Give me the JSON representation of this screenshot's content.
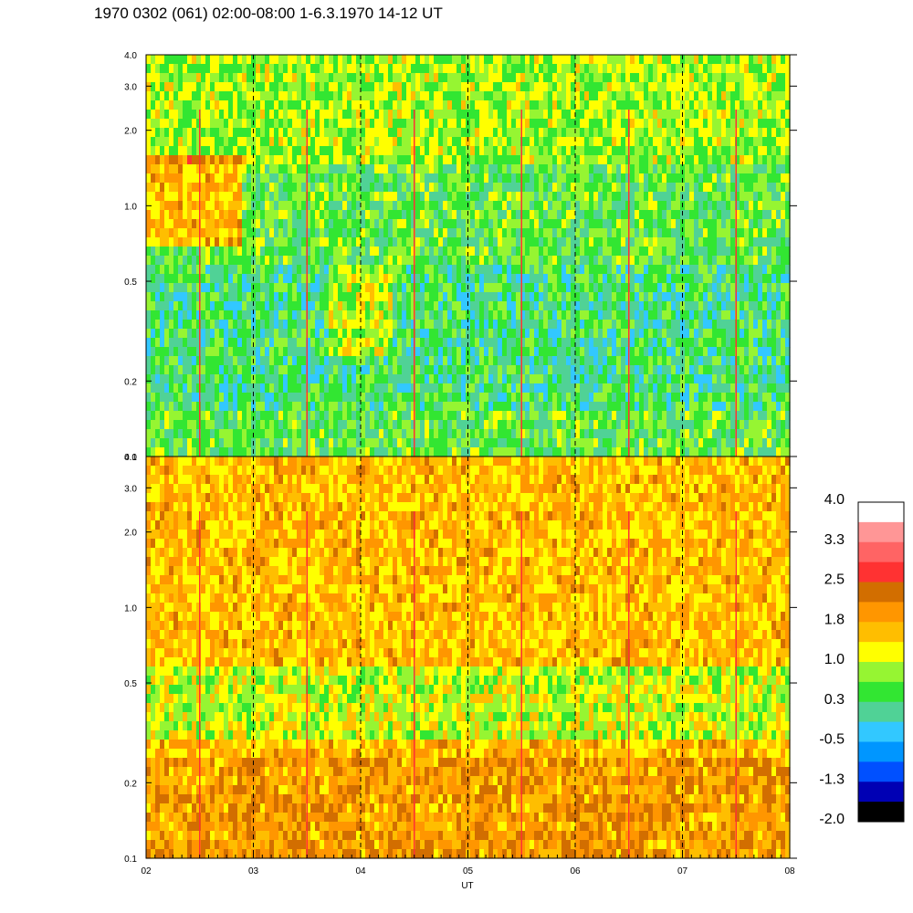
{
  "title": "1970 0302 (061) 02:00-08:00 1-6.3.1970  14-12 UT",
  "chart_data": {
    "type": "heatmap",
    "title": "1970 0302 (061) 02:00-08:00 1-6.3.1970  14-12 UT",
    "xlabel": "UT",
    "x_ticks": [
      "02",
      "03",
      "04",
      "05",
      "06",
      "07",
      "08"
    ],
    "xlim": [
      2,
      8
    ],
    "dashed_gridlines_x": [
      3,
      4,
      5,
      6,
      7
    ],
    "grid": false,
    "panels": [
      {
        "name": "upper",
        "y_scale": "log",
        "ylim": [
          0.1,
          4.0
        ],
        "y_ticks": [
          "0.1",
          "0.2",
          "0.5",
          "1.0",
          "2.0",
          "3.0",
          "4.0"
        ],
        "y_tick_values": [
          0.1,
          0.2,
          0.5,
          1.0,
          2.0,
          3.0,
          4.0
        ],
        "typical_level": 0.5,
        "features": "mostly green/teal (~0.3 to -0.5); orange/yellow patch near 1.0 at 02-03 UT; yellow patch near 0.3-0.5 at 03.7-04.3 UT; thin red vertical lines near 02.5, 03.5, 04.5, 05.5, 06.5, 07.5 UT"
      },
      {
        "name": "lower",
        "y_scale": "log",
        "ylim": [
          0.1,
          4.0
        ],
        "y_ticks": [
          "0.1",
          "0.2",
          "0.5",
          "1.0",
          "2.0",
          "3.0",
          "4.0"
        ],
        "y_tick_values": [
          0.1,
          0.2,
          0.5,
          1.0,
          2.0,
          3.0,
          4.0
        ],
        "typical_level": 1.6,
        "features": "mostly orange/yellow (~1.0 to 2.2); greener band near 0.3-0.6; thin red vertical lines near 02.5, 03.5, 04.5, 05.5, 06.5, 07.5 UT"
      }
    ],
    "colorbar": {
      "tick_labels": [
        "4.0",
        "3.3",
        "2.5",
        "1.8",
        "1.0",
        "0.3",
        "-0.5",
        "-1.3",
        "-2.0"
      ],
      "range": [
        -2.0,
        4.0
      ],
      "colors": [
        "#000000",
        "#0000b4",
        "#0050ff",
        "#0096ff",
        "#32c8ff",
        "#50d296",
        "#32e632",
        "#96f532",
        "#ffff00",
        "#ffbe00",
        "#ff9600",
        "#d26e00",
        "#ff3232",
        "#ff6464",
        "#ff9696",
        "#ffffff"
      ]
    }
  }
}
